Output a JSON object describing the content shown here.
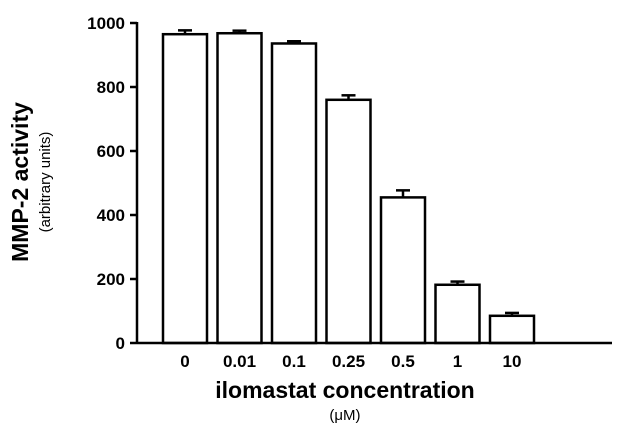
{
  "chart_data": {
    "type": "bar",
    "title": "",
    "categories": [
      "0",
      "0.01",
      "0.1",
      "0.25",
      "0.5",
      "1",
      "10"
    ],
    "values": [
      965,
      968,
      936,
      760,
      455,
      182,
      85
    ],
    "error": [
      12,
      8,
      7,
      14,
      22,
      10,
      9
    ],
    "ylabel": "MMP-2 activity",
    "ylabel_sub": "(arbitrary units)",
    "xlabel": "ilomastat concentration",
    "xlabel_sub": "(μM)",
    "ylim": [
      0,
      1000
    ],
    "yticks": [
      "0",
      "200",
      "400",
      "600",
      "800",
      "1000"
    ],
    "grid": false,
    "bar_fill": "#ffffff",
    "bar_stroke": "#000000"
  }
}
